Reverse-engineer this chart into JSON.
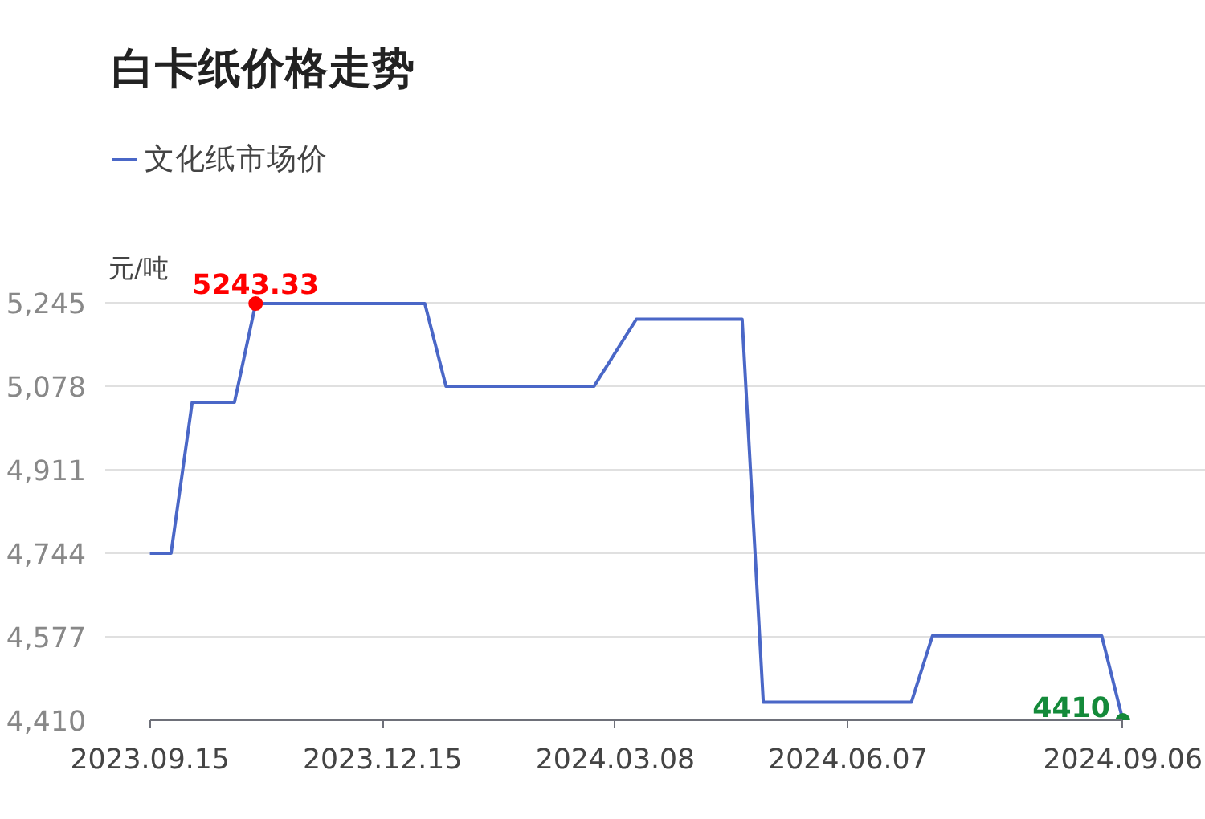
{
  "chart_data": {
    "type": "line",
    "title": "白卡纸价格走势",
    "ylabel": "元/吨",
    "categories": [
      "2023.09.15",
      null,
      null,
      null,
      null,
      null,
      null,
      null,
      null,
      null,
      null,
      "2023.12.15",
      null,
      null,
      null,
      null,
      null,
      null,
      null,
      null,
      null,
      null,
      "2024.03.08",
      null,
      null,
      null,
      null,
      null,
      null,
      null,
      null,
      null,
      null,
      "2024.06.07",
      null,
      null,
      null,
      null,
      null,
      null,
      null,
      null,
      null,
      null,
      null,
      null,
      "2024.09.06"
    ],
    "series": [
      {
        "name": "文化纸市场价",
        "color": "#4a67c7",
        "values": [
          4744,
          4744,
          5046,
          5046,
          5046,
          5243.33,
          5243.33,
          5243.33,
          5243.33,
          5243.33,
          5243.33,
          5243.33,
          5243.33,
          5243.33,
          5078,
          5078,
          5078,
          5078,
          5078,
          5078,
          5078,
          5078,
          5145,
          5212,
          5212,
          5212,
          5212,
          5212,
          5212,
          4446,
          4446,
          4446,
          4446,
          4446,
          4446,
          4446,
          4446,
          4579,
          4579,
          4579,
          4579,
          4579,
          4579,
          4579,
          4579,
          4579,
          4410
        ]
      }
    ],
    "annotations": [
      {
        "text": "5243.33",
        "y": 5243.33
      },
      {
        "text": "4410",
        "x": "2024.09.06",
        "y": 4410
      }
    ],
    "ylim": [
      4410,
      5245
    ],
    "yticks": [
      {
        "value": 4410,
        "label": "4,410"
      },
      {
        "value": 4577,
        "label": "4,577"
      },
      {
        "value": 4744,
        "label": "4,744"
      },
      {
        "value": 4911,
        "label": "4,911"
      },
      {
        "value": 5078,
        "label": "5,078"
      },
      {
        "value": 5245,
        "label": "5,245"
      }
    ],
    "grid": "y",
    "legend": "top left",
    "marker": "none",
    "line_style": "solid"
  }
}
